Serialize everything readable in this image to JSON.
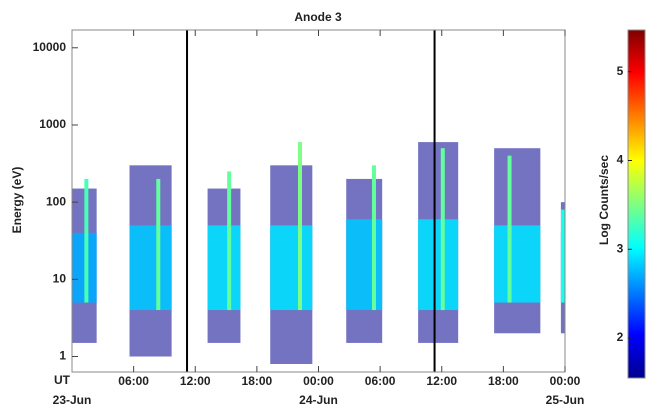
{
  "chart_data": {
    "type": "spectrogram",
    "title": "Anode 3",
    "y_label": "Energy (eV)",
    "x_label": "UT",
    "colorbar_label": "Log Counts/sec",
    "xlim": [
      0,
      48
    ],
    "xticks": [
      {
        "value": 6,
        "label": "06:00"
      },
      {
        "value": 12,
        "label": "12:00"
      },
      {
        "value": 18,
        "label": "18:00"
      },
      {
        "value": 24,
        "label": "00:00"
      },
      {
        "value": 30,
        "label": "06:00"
      },
      {
        "value": 36,
        "label": "12:00"
      },
      {
        "value": 42,
        "label": "18:00"
      },
      {
        "value": 48,
        "label": "00:00"
      }
    ],
    "xdates": [
      {
        "value": 0,
        "label": "23-Jun"
      },
      {
        "value": 24,
        "label": "24-Jun"
      },
      {
        "value": 48,
        "label": "25-Jun"
      }
    ],
    "ylim": [
      0.63,
      17000
    ],
    "log_y": true,
    "yticks": [
      1,
      10,
      100,
      1000,
      10000
    ],
    "clim": [
      1.55,
      5.47
    ],
    "cticks": [
      2,
      3,
      4,
      5
    ],
    "colormap": [
      "#00008f",
      "#0000ff",
      "#0080ff",
      "#00ffff",
      "#80ff80",
      "#ffff00",
      "#ff8000",
      "#ff0000",
      "#800000"
    ],
    "markers": [
      11.2,
      35.3
    ],
    "bursts": [
      {
        "start": 0,
        "end": 2.4,
        "emin": 5,
        "emax": 40,
        "fmin": 1.5,
        "fmax": 150,
        "level": 2.7,
        "spike_t": 1.4,
        "spike_e": 200,
        "spike_level": 3.3
      },
      {
        "start": 5.6,
        "end": 9.7,
        "emin": 4,
        "emax": 50,
        "fmin": 1,
        "fmax": 300,
        "level": 2.8,
        "spike_t": 8.4,
        "spike_e": 200,
        "spike_level": 3.4
      },
      {
        "start": 13.2,
        "end": 16.4,
        "emin": 4,
        "emax": 50,
        "fmin": 1.5,
        "fmax": 150,
        "level": 2.9,
        "spike_t": 15.3,
        "spike_e": 250,
        "spike_level": 3.4
      },
      {
        "start": 19.3,
        "end": 23.4,
        "emin": 4,
        "emax": 50,
        "fmin": 0.8,
        "fmax": 300,
        "level": 2.9,
        "spike_t": 22.2,
        "spike_e": 600,
        "spike_level": 3.5
      },
      {
        "start": 26.7,
        "end": 30.2,
        "emin": 4,
        "emax": 60,
        "fmin": 1.5,
        "fmax": 200,
        "level": 2.8,
        "spike_t": 29.4,
        "spike_e": 300,
        "spike_level": 3.4
      },
      {
        "start": 33.7,
        "end": 37.6,
        "emin": 4,
        "emax": 60,
        "fmin": 1.5,
        "fmax": 600,
        "level": 2.9,
        "spike_t": 36.1,
        "spike_e": 500,
        "spike_level": 3.4
      },
      {
        "start": 41.1,
        "end": 45.6,
        "emin": 5,
        "emax": 50,
        "fmin": 2,
        "fmax": 500,
        "level": 2.9,
        "spike_t": 42.6,
        "spike_e": 400,
        "spike_level": 3.4
      },
      {
        "start": 47.6,
        "end": 48,
        "emin": 5,
        "emax": 40,
        "fmin": 2,
        "fmax": 100,
        "level": 2.7,
        "spike_t": 47.8,
        "spike_e": 80,
        "spike_level": 3.1
      }
    ]
  }
}
